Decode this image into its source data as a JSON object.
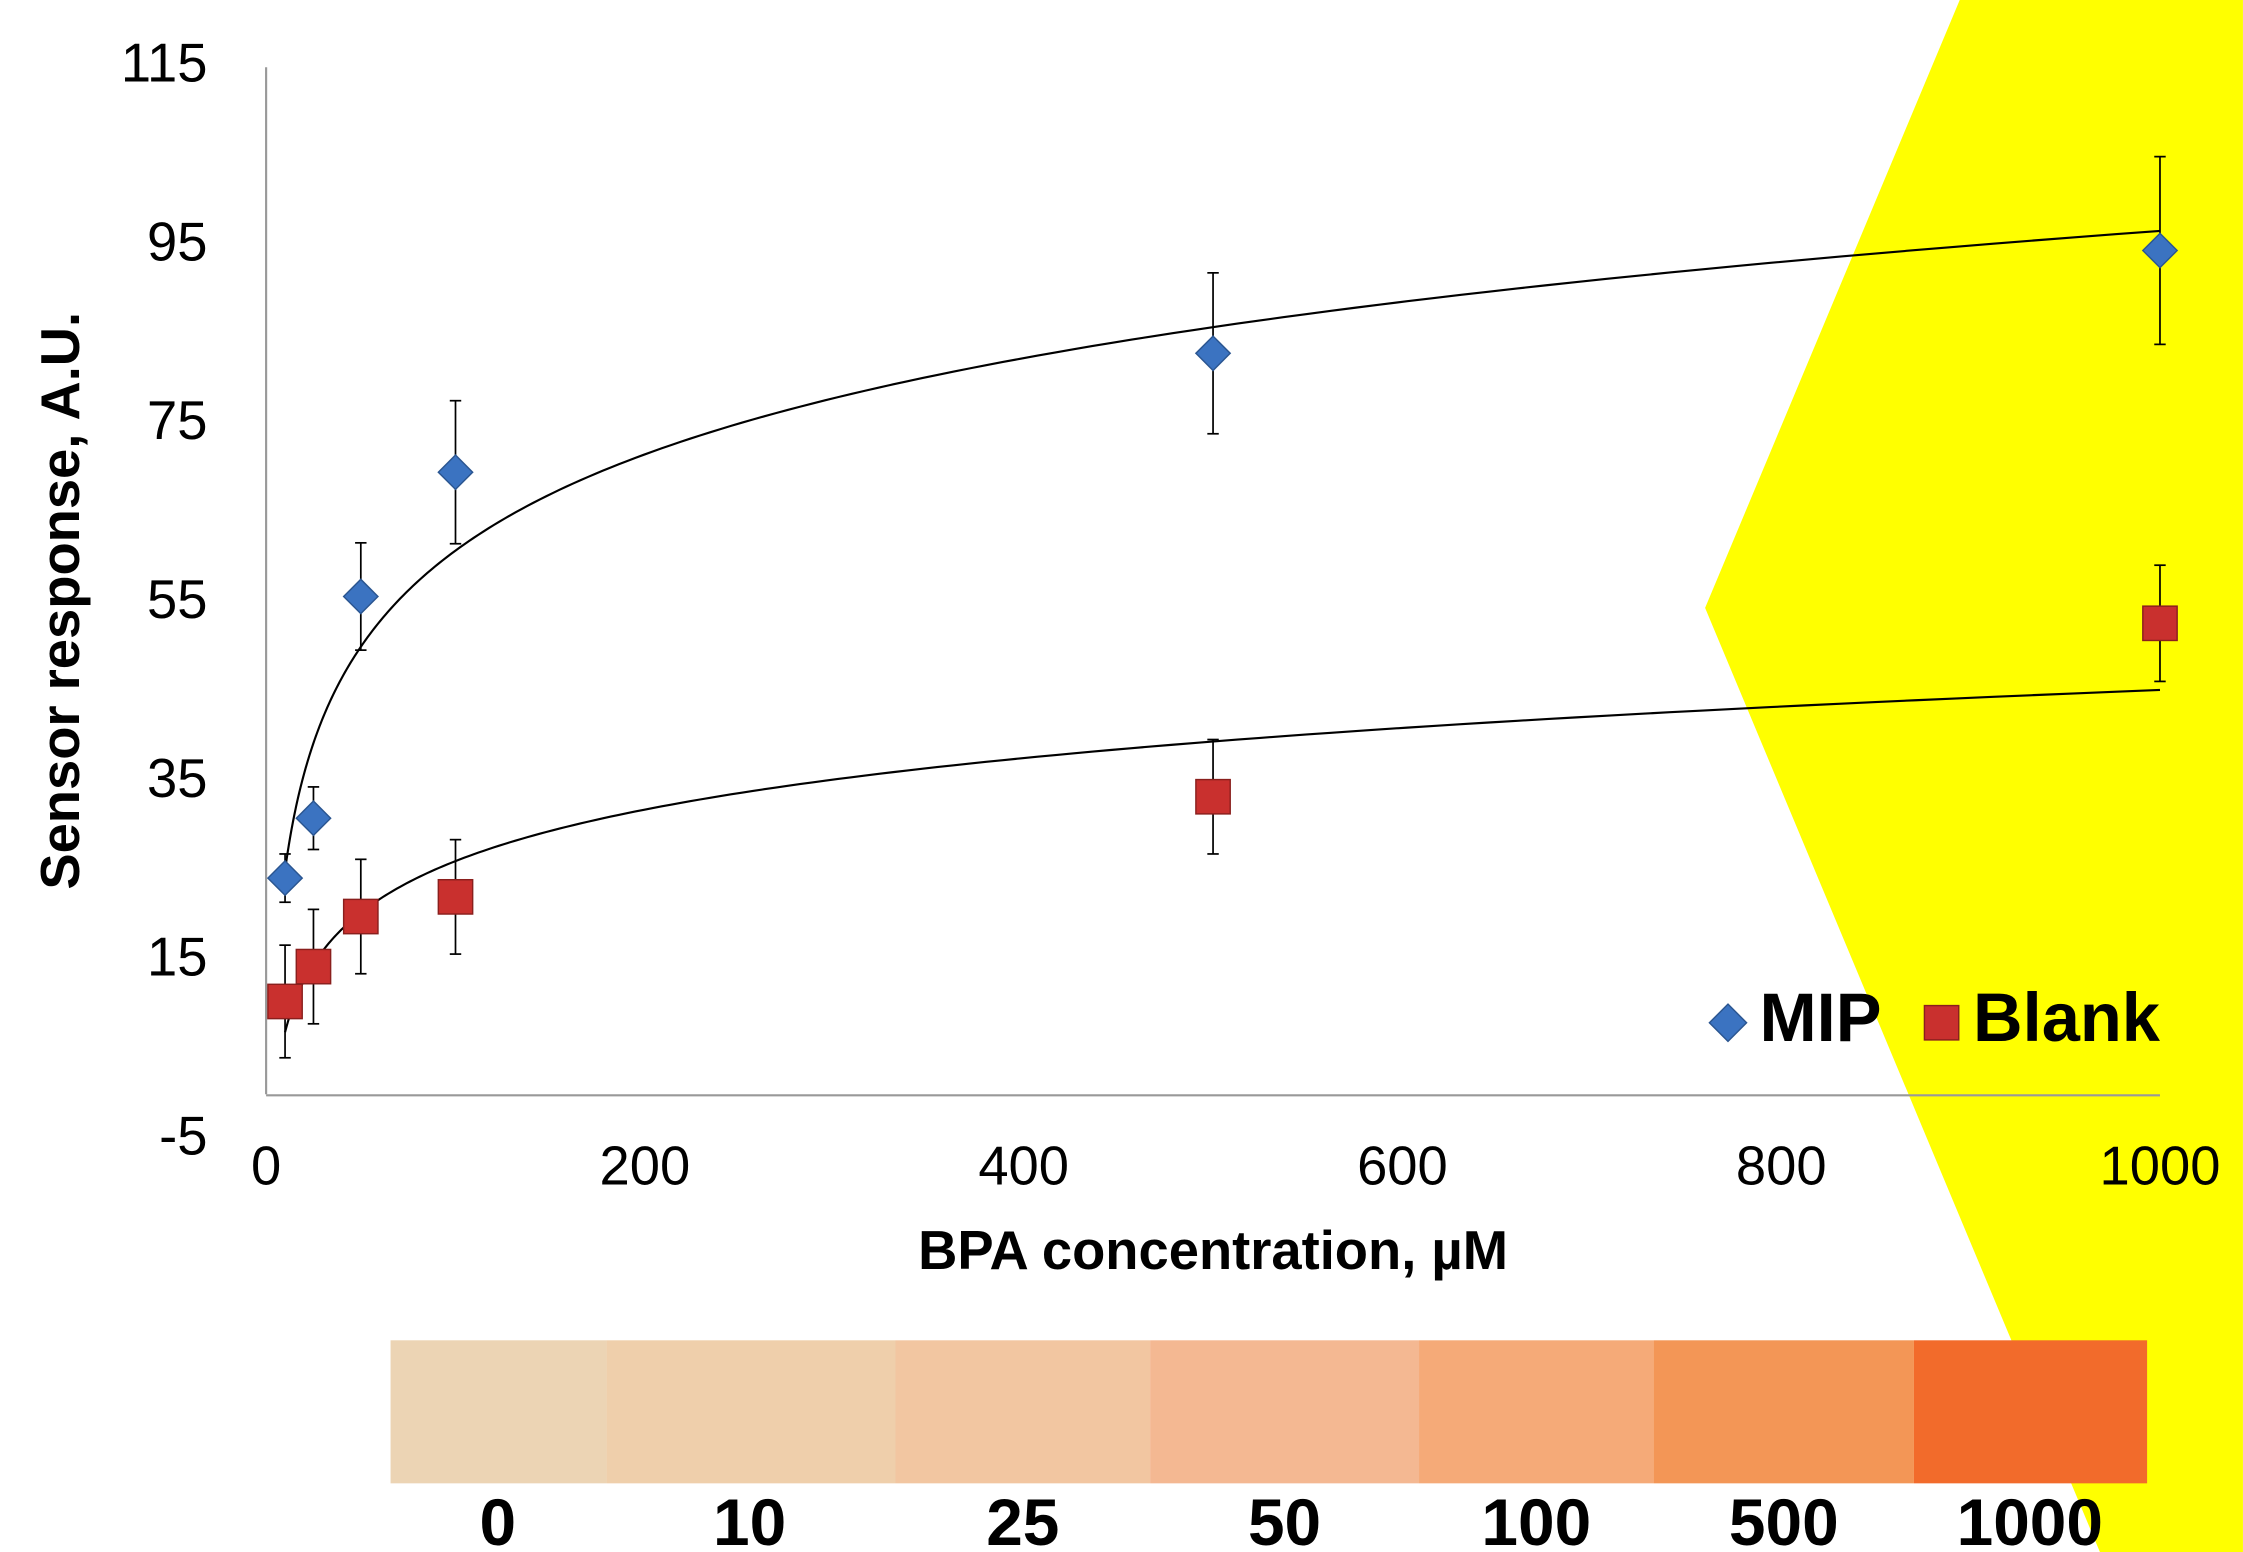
{
  "chart_data": {
    "type": "scatter",
    "x_label": "BPA concentration, µM",
    "y_label": "Sensor response, A.U.",
    "x": [
      10,
      25,
      50,
      100,
      500,
      1000
    ],
    "series": [
      {
        "name": "MIP",
        "color": "#3b73c1",
        "marker": "diamond",
        "values": [
          24.3,
          31,
          55.8,
          69.7,
          83,
          94.5
        ],
        "errors": [
          2.7,
          3.5,
          6,
          8,
          9,
          10.5
        ]
      },
      {
        "name": "Blank",
        "color": "#c9302e",
        "marker": "square",
        "values": [
          10.5,
          14.4,
          20,
          22.2,
          33.4,
          52.8
        ],
        "errors": [
          6.3,
          6.4,
          6.4,
          6.4,
          6.4,
          6.5
        ]
      }
    ],
    "trendline": "log",
    "xlim": [
      0,
      1000
    ],
    "xticks": [
      0,
      200,
      400,
      600,
      800,
      1000
    ],
    "ylim": [
      -5,
      115
    ],
    "yticks": [
      -5,
      15,
      35,
      55,
      75,
      95,
      115
    ],
    "grid": false,
    "legend": "lower right"
  },
  "color_strip": {
    "labels": [
      "0",
      "10",
      "25",
      "50",
      "100",
      "500",
      "1000"
    ]
  }
}
